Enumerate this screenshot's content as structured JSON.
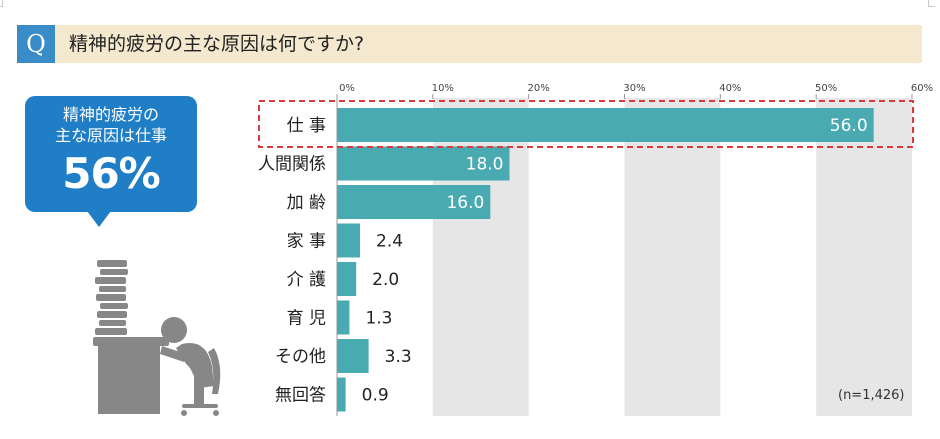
{
  "question": {
    "badge": "Q",
    "text": "精神的疲労の主な原因は何ですか?"
  },
  "callout": {
    "line1": "精神的疲労の",
    "line2": "主な原因は仕事",
    "value": "56%"
  },
  "note": "(n=1,426)",
  "colors": {
    "bar": "#4aaab2",
    "highlight": "#d93a3a",
    "band": "#e6e6e6",
    "callout": "#1f7ec6",
    "question_bar": "#f4e9cf",
    "figure": "#878787"
  },
  "icons": [
    "person-at-desk-icon"
  ],
  "chart_data": {
    "type": "bar",
    "orientation": "horizontal",
    "categories": [
      "仕 事",
      "人間関係",
      "加 齢",
      "家 事",
      "介 護",
      "育 児",
      "その他",
      "無回答"
    ],
    "values": [
      56.0,
      18.0,
      16.0,
      2.4,
      2.0,
      1.3,
      3.3,
      0.9
    ],
    "value_labels": [
      "56.0",
      "18.0",
      "16.0",
      "2.4",
      "2.0",
      "1.3",
      "3.3",
      "0.9"
    ],
    "tick_labels": [
      "0%",
      "10%",
      "20%",
      "30%",
      "40%",
      "50%",
      "60%"
    ],
    "xlim": [
      0,
      60
    ],
    "highlight_index": 0,
    "grid": "alternating vertical bands"
  }
}
